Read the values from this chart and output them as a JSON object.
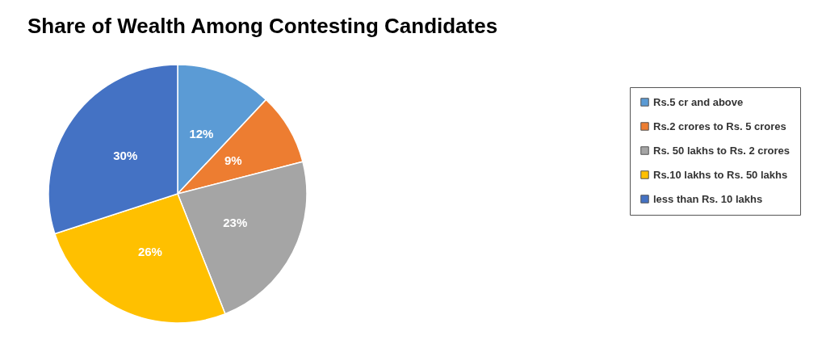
{
  "chart_data": {
    "type": "pie",
    "title": "Share of Wealth Among Contesting Candidates",
    "categories": [
      "Rs.5 cr and above",
      "Rs.2 crores to Rs. 5 crores",
      "Rs. 50 lakhs to Rs. 2 crores",
      "Rs.10 lakhs to Rs. 50 lakhs",
      "less than Rs. 10 lakhs"
    ],
    "values": [
      12,
      9,
      23,
      26,
      30
    ],
    "colors": [
      "#5b9bd5",
      "#ed7d31",
      "#a5a5a5",
      "#ffc000",
      "#4472c4"
    ],
    "value_labels": [
      "12%",
      "9%",
      "23%",
      "26%",
      "30%"
    ],
    "legend": "right"
  }
}
